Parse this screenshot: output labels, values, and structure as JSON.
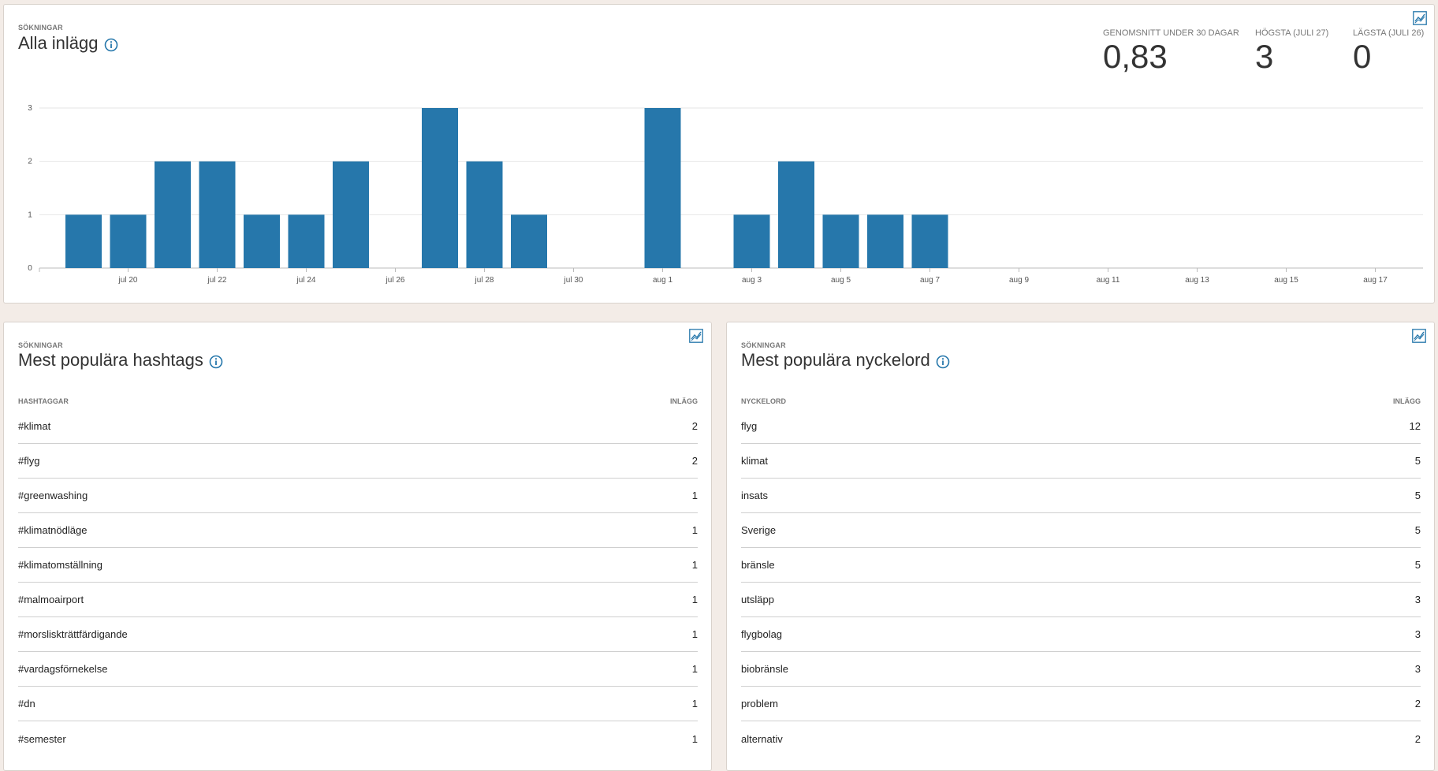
{
  "main": {
    "eyebrow": "SÖKNINGAR",
    "title": "Alla inlägg",
    "stats": [
      {
        "label": "GENOMSNITT UNDER 30 DAGAR",
        "value": "0,83"
      },
      {
        "label": "HÖGSTA (JULI 27)",
        "value": "3"
      },
      {
        "label": "LÄGSTA (JULI 26)",
        "value": "0"
      }
    ]
  },
  "chart_data": {
    "type": "bar",
    "categories": [
      "jul 19",
      "jul 20",
      "jul 21",
      "jul 22",
      "jul 23",
      "jul 24",
      "jul 25",
      "jul 26",
      "jul 27",
      "jul 28",
      "jul 29",
      "jul 30",
      "jul 31",
      "aug 1",
      "aug 2",
      "aug 3",
      "aug 4",
      "aug 5",
      "aug 6",
      "aug 7",
      "aug 8",
      "aug 9",
      "aug 10",
      "aug 11",
      "aug 12",
      "aug 13",
      "aug 14",
      "aug 15",
      "aug 16",
      "aug 17",
      "aug 18"
    ],
    "values": [
      1,
      1,
      2,
      2,
      1,
      1,
      2,
      0,
      3,
      2,
      1,
      0,
      0,
      3,
      0,
      1,
      2,
      1,
      1,
      1,
      0,
      0,
      0,
      0,
      0,
      0,
      0,
      0,
      0,
      0,
      0
    ],
    "tick_labels": [
      "jul 20",
      "jul 22",
      "jul 24",
      "jul 26",
      "jul 28",
      "jul 30",
      "aug 1",
      "aug 3",
      "aug 5",
      "aug 7",
      "aug 9",
      "aug 11",
      "aug 13",
      "aug 15",
      "aug 17"
    ],
    "y_ticks": [
      "0",
      "1",
      "2",
      "3"
    ],
    "ylim": [
      0,
      3
    ],
    "color": "#2677ab",
    "grid": true
  },
  "hashtags": {
    "eyebrow": "SÖKNINGAR",
    "title": "Mest populära hashtags",
    "col_left": "HASHTAGGAR",
    "col_right": "INLÄGG",
    "rows": [
      {
        "name": "#klimat",
        "count": "2"
      },
      {
        "name": "#flyg",
        "count": "2"
      },
      {
        "name": "#greenwashing",
        "count": "1"
      },
      {
        "name": "#klimatnödläge",
        "count": "1"
      },
      {
        "name": "#klimatomställning",
        "count": "1"
      },
      {
        "name": "#malmoairport",
        "count": "1"
      },
      {
        "name": "#morsliskträttfärdigande",
        "count": "1"
      },
      {
        "name": "#vardagsförnekelse",
        "count": "1"
      },
      {
        "name": "#dn",
        "count": "1"
      },
      {
        "name": "#semester",
        "count": "1"
      }
    ]
  },
  "keywords": {
    "eyebrow": "SÖKNINGAR",
    "title": "Mest populära nyckelord",
    "col_left": "NYCKELORD",
    "col_right": "INLÄGG",
    "rows": [
      {
        "name": "flyg",
        "count": "12"
      },
      {
        "name": "klimat",
        "count": "5"
      },
      {
        "name": "insats",
        "count": "5"
      },
      {
        "name": "Sverige",
        "count": "5"
      },
      {
        "name": "bränsle",
        "count": "5"
      },
      {
        "name": "utsläpp",
        "count": "3"
      },
      {
        "name": "flygbolag",
        "count": "3"
      },
      {
        "name": "biobränsle",
        "count": "3"
      },
      {
        "name": "problem",
        "count": "2"
      },
      {
        "name": "alternativ",
        "count": "2"
      }
    ]
  },
  "colors": {
    "accent": "#2677ab",
    "background": "#f3ece7"
  },
  "icons": {
    "info": "info-icon",
    "trend": "trend-chart-icon"
  }
}
